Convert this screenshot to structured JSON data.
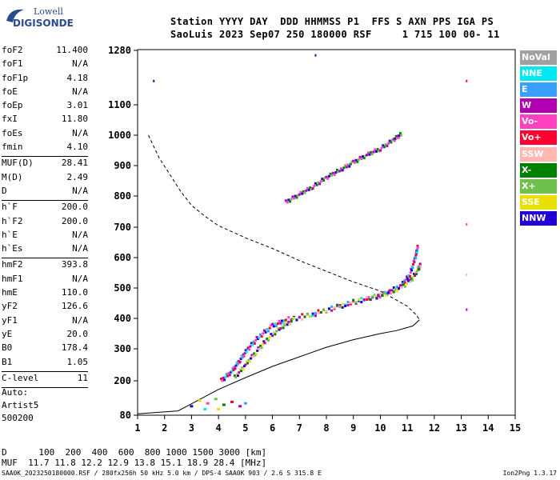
{
  "logo": {
    "top": "Lowell",
    "bottom": "DIGISONDE"
  },
  "header": {
    "line1": "Station YYYY DAY  DDD HHMMSS P1  FFS S AXN PPS IGA PS",
    "line2": "SaoLuis 2023 Sep07 250 180000 RSF     1 715 100 00- 11"
  },
  "params": [
    {
      "name": "foF2",
      "value": "11.400"
    },
    {
      "name": "foF1",
      "value": "N/A"
    },
    {
      "name": "foF1p",
      "value": "4.18"
    },
    {
      "name": "foE",
      "value": "N/A"
    },
    {
      "name": "foEp",
      "value": "3.01"
    },
    {
      "name": "fxI",
      "value": "11.80"
    },
    {
      "name": "foEs",
      "value": "N/A"
    },
    {
      "name": "fmin",
      "value": "4.10"
    },
    {
      "sep": true
    },
    {
      "name": "MUF(D)",
      "value": "28.41"
    },
    {
      "name": "M(D)",
      "value": "2.49"
    },
    {
      "name": "D",
      "value": "N/A"
    },
    {
      "sep": true
    },
    {
      "name": "h`F",
      "value": "200.0"
    },
    {
      "name": "h`F2",
      "value": "200.0"
    },
    {
      "name": "h`E",
      "value": "N/A"
    },
    {
      "name": "h`Es",
      "value": "N/A"
    },
    {
      "sep": true
    },
    {
      "name": "hmF2",
      "value": "393.8"
    },
    {
      "name": "hmF1",
      "value": "N/A"
    },
    {
      "name": "hmE",
      "value": "110.0"
    },
    {
      "name": "yF2",
      "value": "126.6"
    },
    {
      "name": "yF1",
      "value": "N/A"
    },
    {
      "name": "yE",
      "value": "20.0"
    },
    {
      "name": "B0",
      "value": "178.4"
    },
    {
      "name": "B1",
      "value": "1.05"
    },
    {
      "sep": true
    },
    {
      "name": "C-level",
      "value": "11"
    },
    {
      "sep": true
    }
  ],
  "auto": [
    "Auto:",
    "Artist5",
    "500200"
  ],
  "legend": [
    {
      "label": "NoVal",
      "color": "#a0a0a0"
    },
    {
      "label": "NNE",
      "color": "#00e8f0"
    },
    {
      "label": "E",
      "color": "#3aa0ff"
    },
    {
      "label": "W",
      "color": "#b000b0"
    },
    {
      "label": "Vo-",
      "color": "#ff40c0"
    },
    {
      "label": "Vo+",
      "color": "#ff0030"
    },
    {
      "label": "SSW",
      "color": "#ffb8b0"
    },
    {
      "label": "X-",
      "color": "#008000"
    },
    {
      "label": "X+",
      "color": "#70c050"
    },
    {
      "label": "SSE",
      "color": "#e8e000"
    },
    {
      "label": "NNW",
      "color": "#2000d0"
    }
  ],
  "chart_data": {
    "type": "scatter",
    "xlim": [
      1,
      15
    ],
    "ylim": [
      80,
      1280
    ],
    "x_ticks": [
      1,
      2,
      3,
      4,
      5,
      6,
      7,
      8,
      9,
      10,
      11,
      12,
      13,
      14,
      15
    ],
    "y_ticks": [
      80,
      200,
      300,
      400,
      500,
      600,
      700,
      800,
      900,
      1000,
      1100,
      1280
    ],
    "o_trace": [
      [
        4.1,
        200
      ],
      [
        4.5,
        230
      ],
      [
        4.8,
        265
      ],
      [
        5.1,
        300
      ],
      [
        5.5,
        340
      ],
      [
        6.0,
        375
      ],
      [
        6.5,
        395
      ],
      [
        7.5,
        415
      ],
      [
        8.5,
        440
      ],
      [
        9.5,
        465
      ],
      [
        10.2,
        480
      ],
      [
        10.8,
        510
      ],
      [
        11.1,
        545
      ],
      [
        11.3,
        600
      ],
      [
        11.4,
        640
      ]
    ],
    "x_trace": [
      [
        4.6,
        210
      ],
      [
        5.0,
        250
      ],
      [
        5.4,
        290
      ],
      [
        5.8,
        330
      ],
      [
        6.3,
        370
      ],
      [
        6.8,
        395
      ],
      [
        7.8,
        420
      ],
      [
        8.8,
        450
      ],
      [
        9.8,
        470
      ],
      [
        10.5,
        490
      ],
      [
        11.1,
        520
      ],
      [
        11.4,
        560
      ],
      [
        11.5,
        580
      ]
    ],
    "x_trace_upper": [
      [
        6.5,
        780
      ],
      [
        7.0,
        805
      ],
      [
        7.5,
        830
      ],
      [
        8.0,
        860
      ],
      [
        8.5,
        885
      ],
      [
        9.0,
        910
      ],
      [
        9.5,
        935
      ],
      [
        10.0,
        955
      ],
      [
        10.5,
        985
      ],
      [
        10.8,
        1005
      ]
    ],
    "es_points": [
      [
        3.0,
        110
      ],
      [
        3.3,
        130
      ],
      [
        3.6,
        120
      ],
      [
        3.9,
        135
      ],
      [
        4.2,
        115
      ],
      [
        4.5,
        125
      ],
      [
        4.8,
        110
      ],
      [
        5.0,
        120
      ],
      [
        3.5,
        100
      ],
      [
        4.0,
        100
      ]
    ],
    "stray_points": [
      [
        1.6,
        1180
      ],
      [
        7.6,
        1265
      ],
      [
        13.2,
        1180
      ],
      [
        13.2,
        710
      ],
      [
        13.2,
        545
      ],
      [
        13.2,
        430
      ]
    ],
    "profile": [
      [
        1.4,
        1000
      ],
      [
        1.8,
        925
      ],
      [
        2.2,
        870
      ],
      [
        2.6,
        815
      ],
      [
        3.0,
        770
      ],
      [
        3.5,
        735
      ],
      [
        4.0,
        705
      ],
      [
        5.0,
        665
      ],
      [
        6.0,
        630
      ],
      [
        7.0,
        590
      ],
      [
        8.0,
        555
      ],
      [
        9.0,
        520
      ],
      [
        10.0,
        490
      ],
      [
        10.6,
        460
      ],
      [
        11.0,
        440
      ],
      [
        11.35,
        410
      ],
      [
        11.45,
        395
      ],
      [
        11.2,
        375
      ],
      [
        10.6,
        360
      ],
      [
        10.0,
        350
      ],
      [
        9.0,
        330
      ],
      [
        8.0,
        305
      ],
      [
        7.0,
        275
      ],
      [
        6.0,
        245
      ],
      [
        5.0,
        210
      ],
      [
        4.0,
        170
      ],
      [
        3.2,
        130
      ],
      [
        2.8,
        110
      ],
      [
        2.5,
        95
      ],
      [
        1.0,
        85
      ]
    ],
    "grid": false
  },
  "bottom": {
    "d_row": "D      100  200  400  600  800 1000 1500 3000 [km]",
    "muf_row": "MUF  11.7 11.8 12.2 12.9 13.8 15.1 18.9 28.4 [MHz]"
  },
  "footer": {
    "left": "SAA0K_2023250180000.RSF / 280fx256h 50 kHz 5.0 km / DPS-4 SAA0K 903 / 2.6 S 315.8 E",
    "right": "Ion2Png 1.3.17"
  }
}
